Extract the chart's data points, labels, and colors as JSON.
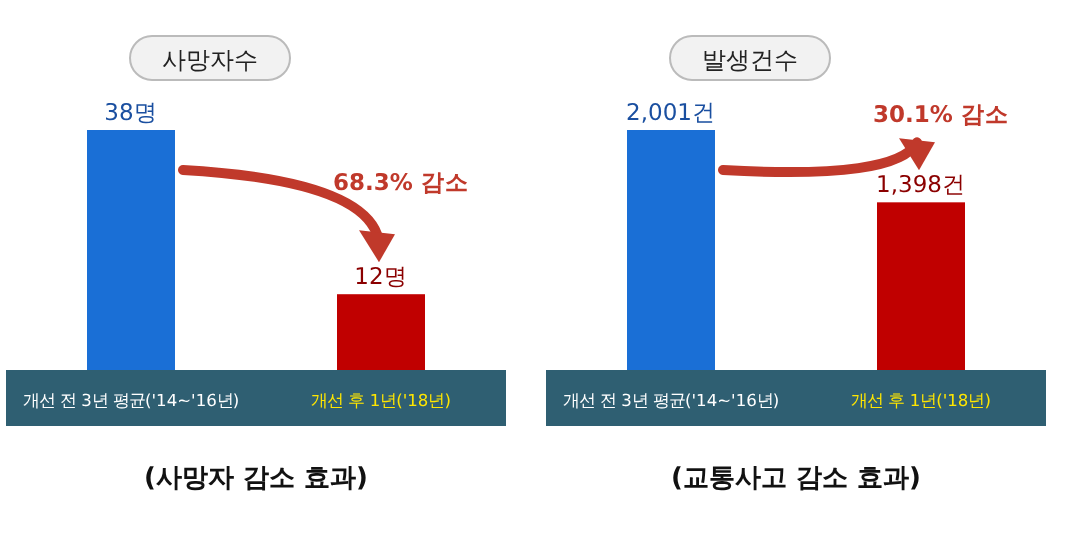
{
  "chart_data": [
    {
      "type": "bar",
      "title": "사망자수",
      "categories": [
        "개선 전 3년 평균('14~'16년)",
        "개선 후 1년('18년)"
      ],
      "values": [
        38,
        12
      ],
      "value_labels": [
        "38명",
        "12명"
      ],
      "colors": [
        "#1a6fd6",
        "#c00000"
      ],
      "annotations": [
        "68.3% 감소",
        "(사망자 감소 효과)"
      ]
    },
    {
      "type": "bar",
      "title": "발생건수",
      "categories": [
        "개선 전 3년 평균('14~'16년)",
        "개선 후 1년('18년)"
      ],
      "values": [
        2001,
        1398
      ],
      "value_labels": [
        "2,001건",
        "1,398건"
      ],
      "colors": [
        "#1a6fd6",
        "#c00000"
      ],
      "annotations": [
        "30.1% 감소",
        "(교통사고 감소 효과)"
      ]
    }
  ]
}
